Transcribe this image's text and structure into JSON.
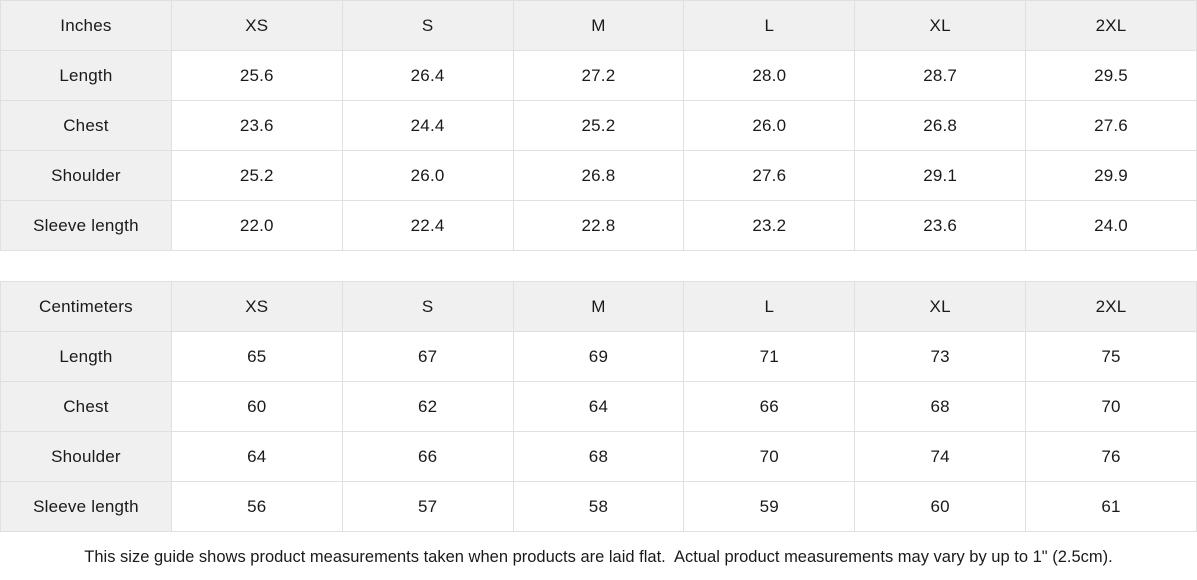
{
  "colors": {
    "header_bg": "#f0f0f0",
    "cell_bg": "#ffffff",
    "border": "#e0e0e0",
    "text": "#1a1a1a"
  },
  "tables": [
    {
      "unit": "Inches",
      "columns": [
        "XS",
        "S",
        "M",
        "L",
        "XL",
        "2XL"
      ],
      "rows": [
        {
          "label": "Length",
          "values": [
            "25.6",
            "26.4",
            "27.2",
            "28.0",
            "28.7",
            "29.5"
          ]
        },
        {
          "label": "Chest",
          "values": [
            "23.6",
            "24.4",
            "25.2",
            "26.0",
            "26.8",
            "27.6"
          ]
        },
        {
          "label": "Shoulder",
          "values": [
            "25.2",
            "26.0",
            "26.8",
            "27.6",
            "29.1",
            "29.9"
          ]
        },
        {
          "label": "Sleeve length",
          "values": [
            "22.0",
            "22.4",
            "22.8",
            "23.2",
            "23.6",
            "24.0"
          ]
        }
      ]
    },
    {
      "unit": "Centimeters",
      "columns": [
        "XS",
        "S",
        "M",
        "L",
        "XL",
        "2XL"
      ],
      "rows": [
        {
          "label": "Length",
          "values": [
            "65",
            "67",
            "69",
            "71",
            "73",
            "75"
          ]
        },
        {
          "label": "Chest",
          "values": [
            "60",
            "62",
            "64",
            "66",
            "68",
            "70"
          ]
        },
        {
          "label": "Shoulder",
          "values": [
            "64",
            "66",
            "68",
            "70",
            "74",
            "76"
          ]
        },
        {
          "label": "Sleeve length",
          "values": [
            "56",
            "57",
            "58",
            "59",
            "60",
            "61"
          ]
        }
      ]
    }
  ],
  "footer": {
    "note": "This size guide shows product measurements taken when products are laid flat.  Actual product measurements may vary by up to 1\" (2.5cm)."
  },
  "chart_data": [
    {
      "type": "table",
      "title": "Inches",
      "columns": [
        "",
        "XS",
        "S",
        "M",
        "L",
        "XL",
        "2XL"
      ],
      "rows": [
        [
          "Length",
          25.6,
          26.4,
          27.2,
          28.0,
          28.7,
          29.5
        ],
        [
          "Chest",
          23.6,
          24.4,
          25.2,
          26.0,
          26.8,
          27.6
        ],
        [
          "Shoulder",
          25.2,
          26.0,
          26.8,
          27.6,
          29.1,
          29.9
        ],
        [
          "Sleeve length",
          22.0,
          22.4,
          22.8,
          23.2,
          23.6,
          24.0
        ]
      ]
    },
    {
      "type": "table",
      "title": "Centimeters",
      "columns": [
        "",
        "XS",
        "S",
        "M",
        "L",
        "XL",
        "2XL"
      ],
      "rows": [
        [
          "Length",
          65,
          67,
          69,
          71,
          73,
          75
        ],
        [
          "Chest",
          60,
          62,
          64,
          66,
          68,
          70
        ],
        [
          "Shoulder",
          64,
          66,
          68,
          70,
          74,
          76
        ],
        [
          "Sleeve length",
          56,
          57,
          58,
          59,
          60,
          61
        ]
      ]
    }
  ]
}
